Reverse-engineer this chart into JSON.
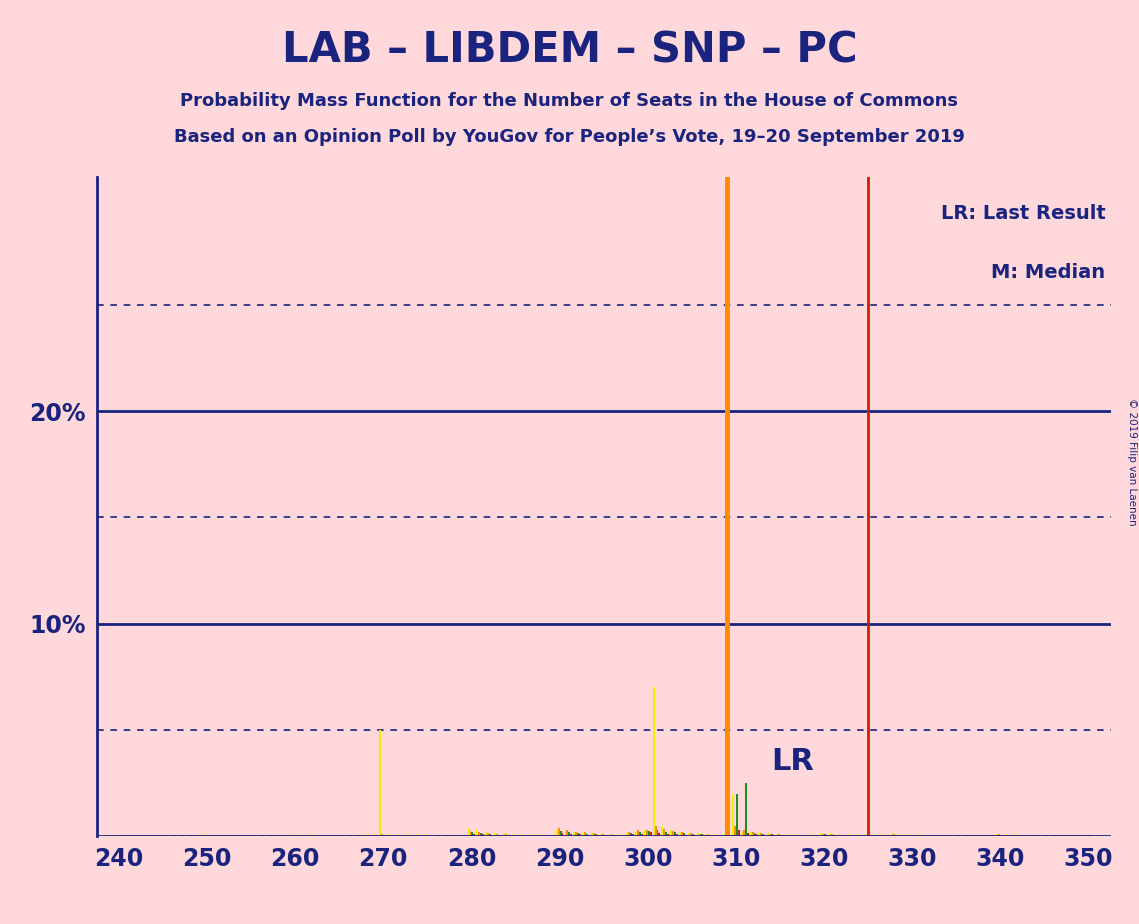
{
  "title": "LAB – LIBDEM – SNP – PC",
  "subtitle1": "Probability Mass Function for the Number of Seats in the House of Commons",
  "subtitle2": "Based on an Opinion Poll by YouGov for People’s Vote, 19–20 September 2019",
  "copyright": "© 2019 Filip van Laenen",
  "legend_lr": "LR: Last Result",
  "legend_m": "M: Median",
  "lr_label": "LR",
  "background_color": "#FFD8DC",
  "title_color": "#1A237E",
  "bar_colors": [
    "#EEEE00",
    "#FF8C00",
    "#228B22",
    "#CC2200"
  ],
  "lr_line_color": "#CC2200",
  "median_line_color": "#FF8C00",
  "solid_grid_color": "#1A237E",
  "dotted_grid_color": "#1A237E",
  "xmin": 237.5,
  "xmax": 352.5,
  "ymin": 0,
  "ymax": 31,
  "lr_x": 325,
  "median_x": 309,
  "xticks": [
    240,
    250,
    260,
    270,
    280,
    290,
    300,
    310,
    320,
    330,
    340,
    350
  ],
  "yticks_solid": [
    10,
    20
  ],
  "yticks_dotted": [
    5,
    15,
    25
  ],
  "seats": [
    240,
    241,
    242,
    243,
    244,
    245,
    246,
    247,
    248,
    249,
    250,
    251,
    252,
    253,
    254,
    255,
    256,
    257,
    258,
    259,
    260,
    261,
    262,
    263,
    264,
    265,
    266,
    267,
    268,
    269,
    270,
    271,
    272,
    273,
    274,
    275,
    276,
    277,
    278,
    279,
    280,
    281,
    282,
    283,
    284,
    285,
    286,
    287,
    288,
    289,
    290,
    291,
    292,
    293,
    294,
    295,
    296,
    297,
    298,
    299,
    300,
    301,
    302,
    303,
    304,
    305,
    306,
    307,
    308,
    309,
    310,
    311,
    312,
    313,
    314,
    315,
    316,
    317,
    318,
    319,
    320,
    321,
    322,
    323,
    324,
    325,
    326,
    327,
    328,
    329,
    330,
    331,
    332,
    333,
    334,
    335,
    336,
    337,
    338,
    339,
    340,
    341,
    342,
    343,
    344,
    345,
    346,
    347,
    348,
    349,
    350
  ],
  "lab": [
    0.05,
    0.05,
    0.05,
    0.05,
    0.05,
    0.05,
    0.05,
    0.05,
    0.05,
    0.05,
    0.1,
    0.05,
    0.05,
    0.05,
    0.05,
    0.05,
    0.05,
    0.05,
    0.05,
    0.05,
    0.1,
    0.05,
    0.1,
    0.05,
    0.05,
    0.05,
    0.05,
    0.05,
    0.1,
    0.12,
    5.0,
    0.1,
    0.1,
    0.1,
    0.1,
    0.1,
    0.05,
    0.05,
    0.05,
    0.05,
    0.4,
    0.3,
    0.2,
    0.15,
    0.15,
    0.1,
    0.1,
    0.1,
    0.1,
    0.05,
    0.3,
    0.25,
    0.2,
    0.15,
    0.15,
    0.1,
    0.1,
    0.1,
    0.15,
    0.2,
    0.3,
    7.0,
    0.5,
    0.3,
    0.2,
    0.15,
    0.15,
    0.1,
    0.1,
    0.1,
    2.0,
    0.2,
    0.2,
    0.15,
    0.15,
    0.1,
    0.1,
    0.1,
    0.1,
    0.1,
    0.15,
    0.15,
    0.1,
    0.1,
    0.1,
    0.1,
    0.1,
    0.1,
    0.15,
    0.1,
    0.1,
    0.1,
    0.05,
    0.05,
    0.05,
    0.05,
    0.05,
    0.05,
    0.05,
    0.05,
    0.1,
    0.1,
    0.1,
    0.05,
    0.05,
    0.05,
    0.05,
    0.05,
    0.05,
    0.05,
    0.05
  ],
  "libdem": [
    0.05,
    0.05,
    0.05,
    0.05,
    0.05,
    0.05,
    0.05,
    0.05,
    0.05,
    0.05,
    0.05,
    0.05,
    0.05,
    0.05,
    0.05,
    0.05,
    0.05,
    0.05,
    0.05,
    0.05,
    0.05,
    0.05,
    0.05,
    0.05,
    0.05,
    0.05,
    0.05,
    0.05,
    0.05,
    0.08,
    0.1,
    0.08,
    0.05,
    0.05,
    0.05,
    0.05,
    0.05,
    0.05,
    0.05,
    0.05,
    0.25,
    0.2,
    0.15,
    0.12,
    0.1,
    0.08,
    0.08,
    0.05,
    0.05,
    0.05,
    0.4,
    0.3,
    0.2,
    0.18,
    0.15,
    0.12,
    0.1,
    0.08,
    0.2,
    0.3,
    0.3,
    0.5,
    0.35,
    0.25,
    0.18,
    0.15,
    0.12,
    0.1,
    0.08,
    28.0,
    0.5,
    0.3,
    0.2,
    0.15,
    0.12,
    0.1,
    0.08,
    0.05,
    0.05,
    0.05,
    0.12,
    0.1,
    0.08,
    0.05,
    0.05,
    0.05,
    0.05,
    0.05,
    0.1,
    0.08,
    0.08,
    0.05,
    0.05,
    0.05,
    0.05,
    0.05,
    0.05,
    0.05,
    0.05,
    0.05,
    0.1,
    0.08,
    0.05,
    0.05,
    0.05,
    0.05,
    0.05,
    0.05,
    0.05,
    0.05,
    0.05
  ],
  "snp": [
    0.05,
    0.05,
    0.05,
    0.05,
    0.05,
    0.05,
    0.05,
    0.05,
    0.05,
    0.05,
    0.05,
    0.05,
    0.05,
    0.05,
    0.05,
    0.05,
    0.05,
    0.05,
    0.05,
    0.05,
    0.05,
    0.05,
    0.05,
    0.05,
    0.05,
    0.05,
    0.05,
    0.05,
    0.05,
    0.06,
    0.08,
    0.06,
    0.05,
    0.05,
    0.05,
    0.05,
    0.05,
    0.05,
    0.05,
    0.05,
    0.18,
    0.14,
    0.1,
    0.08,
    0.08,
    0.06,
    0.06,
    0.05,
    0.05,
    0.05,
    0.25,
    0.2,
    0.15,
    0.12,
    0.1,
    0.08,
    0.06,
    0.05,
    0.15,
    0.2,
    0.25,
    0.3,
    0.22,
    0.18,
    0.14,
    0.12,
    0.1,
    0.08,
    0.06,
    0.05,
    2.0,
    2.5,
    0.15,
    0.12,
    0.1,
    0.08,
    0.06,
    0.05,
    0.05,
    0.05,
    0.1,
    0.08,
    0.06,
    0.05,
    0.05,
    0.05,
    0.05,
    0.05,
    0.08,
    0.06,
    0.06,
    0.05,
    0.05,
    0.05,
    0.05,
    0.05,
    0.05,
    0.05,
    0.05,
    0.05,
    0.08,
    0.06,
    0.05,
    0.05,
    0.05,
    0.05,
    0.05,
    0.05,
    0.05,
    0.05,
    0.05
  ],
  "pc": [
    0.05,
    0.05,
    0.05,
    0.05,
    0.05,
    0.05,
    0.05,
    0.05,
    0.05,
    0.05,
    0.05,
    0.05,
    0.05,
    0.05,
    0.05,
    0.05,
    0.05,
    0.05,
    0.05,
    0.05,
    0.05,
    0.05,
    0.05,
    0.05,
    0.05,
    0.05,
    0.05,
    0.05,
    0.05,
    0.05,
    0.06,
    0.05,
    0.05,
    0.05,
    0.05,
    0.05,
    0.05,
    0.05,
    0.05,
    0.05,
    0.12,
    0.1,
    0.08,
    0.06,
    0.06,
    0.05,
    0.05,
    0.05,
    0.05,
    0.05,
    0.15,
    0.12,
    0.1,
    0.08,
    0.08,
    0.05,
    0.05,
    0.05,
    0.1,
    0.12,
    0.2,
    0.15,
    0.12,
    0.1,
    0.08,
    0.06,
    0.05,
    0.05,
    0.05,
    0.05,
    0.3,
    0.15,
    0.1,
    0.08,
    0.06,
    0.05,
    0.05,
    0.05,
    0.05,
    0.05,
    0.08,
    0.06,
    0.05,
    0.05,
    0.05,
    0.05,
    0.05,
    0.05,
    0.06,
    0.05,
    0.05,
    0.05,
    0.05,
    0.05,
    0.05,
    0.05,
    0.05,
    0.05,
    0.05,
    0.05,
    0.06,
    0.05,
    0.05,
    0.05,
    0.05,
    0.05,
    0.05,
    0.05,
    0.05,
    0.05,
    0.05
  ]
}
